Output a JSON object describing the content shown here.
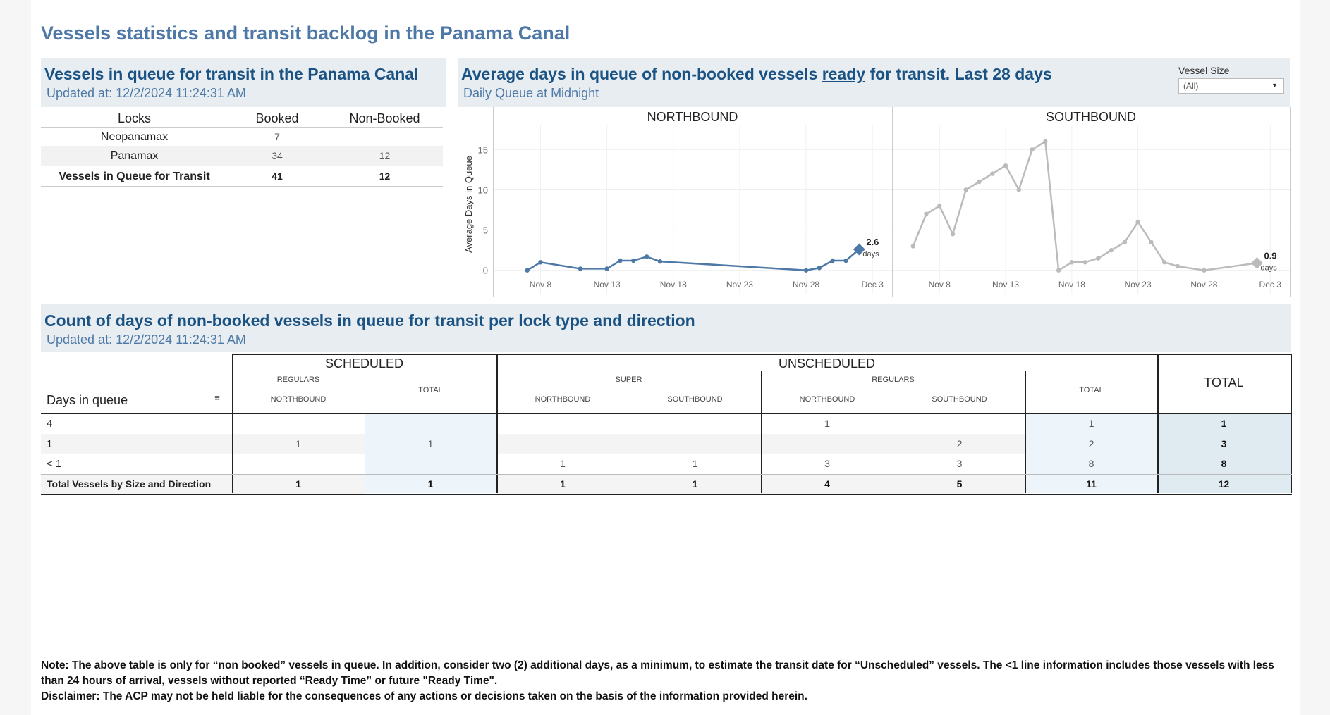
{
  "page_title": "Vessels statistics and transit backlog in the Panama Canal",
  "queue_panel": {
    "title": "Vessels in queue for transit in the Panama Canal",
    "updated": "Updated at:  12/2/2024 11:24:31 AM",
    "headers": [
      "Locks",
      "Booked",
      "Non-Booked"
    ],
    "rows": [
      {
        "lock": "Neopanamax",
        "booked": "7",
        "non_booked": ""
      },
      {
        "lock": "Panamax",
        "booked": "34",
        "non_booked": "12"
      },
      {
        "lock": "Vessels in Queue for Transit",
        "booked": "41",
        "non_booked": "12"
      }
    ]
  },
  "chart_panel": {
    "title_pre": "Average days in queue of non-booked vessels ",
    "title_ready": "ready",
    "title_post": " for transit. Last 28 days",
    "subtitle": "Daily Queue at Midnight",
    "dropdown_label": "Vessel Size",
    "dropdown_value": "(All)",
    "dropdown_arrow": "▼"
  },
  "chart_data": {
    "type": "line",
    "ylabel": "Average Days in Queue",
    "ylim": [
      -3,
      18
    ],
    "yticks": [
      0,
      5,
      10,
      15
    ],
    "xticks": [
      "Nov 8",
      "Nov 13",
      "Nov 18",
      "Nov 23",
      "Nov 28",
      "Dec 3"
    ],
    "x_range_days": [
      5,
      34
    ],
    "panels": [
      {
        "name": "NORTHBOUND",
        "color": "#4e79a7",
        "points": [
          [
            7,
            0
          ],
          [
            8,
            1
          ],
          [
            11,
            0.2
          ],
          [
            13,
            0.2
          ],
          [
            14,
            1.2
          ],
          [
            15,
            1.2
          ],
          [
            16,
            1.7
          ],
          [
            17,
            1.1
          ],
          [
            28,
            0
          ],
          [
            29,
            0.3
          ],
          [
            30,
            1.2
          ],
          [
            31,
            1.2
          ],
          [
            32,
            2.6
          ]
        ],
        "end_label": "2.6",
        "end_unit": "days"
      },
      {
        "name": "SOUTHBOUND",
        "color": "#bbbbbb",
        "points": [
          [
            6,
            3
          ],
          [
            7,
            7
          ],
          [
            8,
            8
          ],
          [
            9,
            4.5
          ],
          [
            10,
            10
          ],
          [
            11,
            11
          ],
          [
            12,
            12
          ],
          [
            13,
            13
          ],
          [
            14,
            10
          ],
          [
            15,
            15
          ],
          [
            16,
            16
          ],
          [
            17,
            0
          ],
          [
            18,
            1
          ],
          [
            19,
            1
          ],
          [
            20,
            1.5
          ],
          [
            21,
            2.5
          ],
          [
            22,
            3.5
          ],
          [
            23,
            6
          ],
          [
            24,
            3.5
          ],
          [
            25,
            1
          ],
          [
            26,
            0.5
          ],
          [
            28,
            0
          ],
          [
            32,
            0.9
          ]
        ],
        "end_label": "0.9",
        "end_unit": "days"
      }
    ]
  },
  "days_panel": {
    "title": "Count of days of non-booked vessels in queue for transit per lock type and direction",
    "updated": "Updated at:  12/2/2024 11:24:31 AM",
    "row_header": "Days in queue",
    "groups": {
      "scheduled": "SCHEDULED",
      "unscheduled": "UNSCHEDULED",
      "total": "TOTAL"
    },
    "sub": {
      "regulars": "REGULARS",
      "super": "SUPER",
      "regulars2": "REGULARS",
      "total": "TOTAL",
      "total2": "TOTAL"
    },
    "dirs": {
      "nb": "NORTHBOUND",
      "sb": "SOUTHBOUND"
    },
    "rows": [
      {
        "label": "4",
        "cells": [
          "",
          "",
          "",
          "",
          "1",
          "",
          "1",
          "1"
        ]
      },
      {
        "label": "1",
        "cells": [
          "1",
          "1",
          "",
          "",
          "",
          "2",
          "2",
          "3"
        ]
      },
      {
        "label": "< 1",
        "cells": [
          "",
          "",
          "1",
          "1",
          "3",
          "3",
          "8",
          "8"
        ]
      },
      {
        "label": "Total Vessels by Size and Direction",
        "cells": [
          "1",
          "1",
          "1",
          "1",
          "4",
          "5",
          "11",
          "12"
        ]
      }
    ]
  },
  "notes": {
    "note": "Note:  The above table is only for “non booked” vessels in queue. In addition, consider two (2) additional days, as a minimum, to estimate the transit date for “Unscheduled” vessels.  The <1 line information includes those vessels with less than 24 hours of arrival, vessels without reported “Ready Time” or future \"Ready Time\".",
    "disclaimer": "Disclaimer: The ACP may not be held liable for the consequences of any actions or decisions taken on the basis of the information provided herein."
  }
}
